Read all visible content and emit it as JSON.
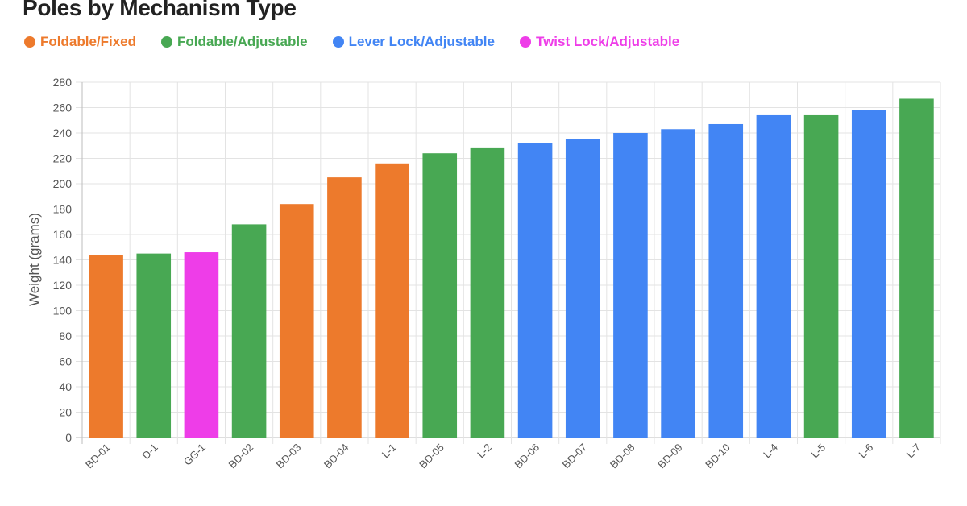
{
  "chart_data": {
    "type": "bar",
    "title": "Poles by Mechanism Type",
    "xlabel": "",
    "ylabel": "Weight (grams)",
    "ylim": [
      0,
      280
    ],
    "yticks": [
      0,
      20,
      40,
      60,
      80,
      100,
      120,
      140,
      160,
      180,
      200,
      220,
      240,
      260,
      280
    ],
    "grid": true,
    "legend_position": "top-left",
    "legend": [
      {
        "label": "Foldable/Fixed",
        "color": "#ed7a2c"
      },
      {
        "label": "Foldable/Adjustable",
        "color": "#48a853"
      },
      {
        "label": "Lever Lock/Adjustable",
        "color": "#4285f4"
      },
      {
        "label": "Twist Lock/Adjustable",
        "color": "#ee3de8"
      }
    ],
    "categories": [
      "BD-01",
      "D-1",
      "GG-1",
      "BD-02",
      "BD-03",
      "BD-04",
      "L-1",
      "BD-05",
      "L-2",
      "BD-06",
      "BD-07",
      "BD-08",
      "BD-09",
      "BD-10",
      "L-4",
      "L-5",
      "L-6",
      "L-7"
    ],
    "values": [
      144,
      145,
      146,
      168,
      184,
      205,
      216,
      224,
      228,
      232,
      235,
      240,
      243,
      247,
      254,
      254,
      258,
      267
    ],
    "groups": [
      "Foldable/Fixed",
      "Foldable/Adjustable",
      "Twist Lock/Adjustable",
      "Foldable/Adjustable",
      "Foldable/Fixed",
      "Foldable/Fixed",
      "Foldable/Fixed",
      "Foldable/Adjustable",
      "Foldable/Adjustable",
      "Lever Lock/Adjustable",
      "Lever Lock/Adjustable",
      "Lever Lock/Adjustable",
      "Lever Lock/Adjustable",
      "Lever Lock/Adjustable",
      "Lever Lock/Adjustable",
      "Foldable/Adjustable",
      "Lever Lock/Adjustable",
      "Foldable/Adjustable"
    ]
  }
}
